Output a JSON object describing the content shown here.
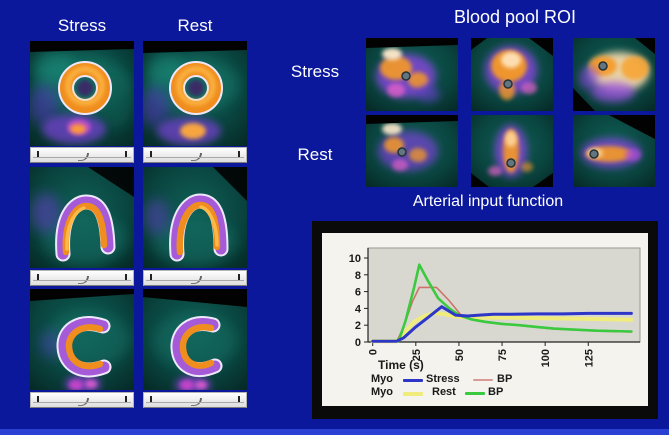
{
  "left_panel": {
    "column_headers": [
      {
        "label": "Stress"
      },
      {
        "label": "Rest"
      }
    ]
  },
  "blood_pool": {
    "title": "Blood pool ROI",
    "row_labels": [
      {
        "label": "Stress"
      },
      {
        "label": "Rest"
      }
    ]
  },
  "aif": {
    "title": "Arterial input function"
  },
  "chart_data": {
    "type": "line",
    "title": "Arterial input function",
    "xlabel": "Time (s)",
    "ylabel": "",
    "xlim": [
      0,
      155
    ],
    "ylim": [
      0,
      10
    ],
    "xticks": [
      0,
      25,
      50,
      75,
      100,
      125
    ],
    "yticks": [
      0,
      2,
      4,
      6,
      8,
      10
    ],
    "x_tick_rotation": -90,
    "grid": false,
    "plot_bg": "#d9d8d0",
    "legend_position": "bottom",
    "series": [
      {
        "name": "Myo Rest",
        "color": "#efec7d",
        "width": 4,
        "points": [
          [
            0,
            0.1
          ],
          [
            14,
            0.1
          ],
          [
            18,
            1.0
          ],
          [
            24,
            2.4
          ],
          [
            30,
            3.1
          ],
          [
            36,
            3.45
          ],
          [
            42,
            3.3
          ],
          [
            48,
            3.05
          ],
          [
            55,
            2.95
          ],
          [
            65,
            2.9
          ],
          [
            80,
            2.9
          ],
          [
            95,
            2.85
          ],
          [
            110,
            2.8
          ],
          [
            125,
            2.75
          ],
          [
            150,
            2.65
          ]
        ]
      },
      {
        "name": "BP Stress",
        "color": "#cd7468",
        "width": 1.6,
        "points": [
          [
            0,
            0.1
          ],
          [
            14,
            0.1
          ],
          [
            18,
            1.8
          ],
          [
            23,
            4.8
          ],
          [
            27,
            6.5
          ],
          [
            37,
            6.5
          ],
          [
            44,
            5.0
          ],
          [
            52,
            3.0
          ],
          [
            58,
            2.7
          ],
          [
            65,
            2.45
          ],
          [
            75,
            2.2
          ],
          [
            85,
            1.95
          ],
          [
            95,
            1.75
          ],
          [
            105,
            1.55
          ],
          [
            115,
            1.45
          ],
          [
            130,
            1.3
          ],
          [
            150,
            1.2
          ]
        ]
      },
      {
        "name": "BP Rest",
        "color": "#3bc93f",
        "width": 2.6,
        "points": [
          [
            0,
            0.1
          ],
          [
            15,
            0.1
          ],
          [
            19,
            2.5
          ],
          [
            24,
            6.5
          ],
          [
            27,
            9.2
          ],
          [
            32,
            7.3
          ],
          [
            38,
            5.2
          ],
          [
            45,
            3.9
          ],
          [
            50,
            3.2
          ],
          [
            57,
            2.7
          ],
          [
            65,
            2.4
          ],
          [
            75,
            2.15
          ],
          [
            85,
            2.0
          ],
          [
            95,
            1.8
          ],
          [
            105,
            1.6
          ],
          [
            115,
            1.5
          ],
          [
            130,
            1.35
          ],
          [
            150,
            1.25
          ]
        ]
      },
      {
        "name": "Myo Stress",
        "color": "#2e36c8",
        "width": 3,
        "points": [
          [
            0,
            0.1
          ],
          [
            14,
            0.1
          ],
          [
            18,
            0.5
          ],
          [
            25,
            1.8
          ],
          [
            32,
            2.9
          ],
          [
            40,
            4.2
          ],
          [
            44,
            3.7
          ],
          [
            48,
            3.2
          ],
          [
            55,
            3.1
          ],
          [
            62,
            3.2
          ],
          [
            70,
            3.3
          ],
          [
            80,
            3.3
          ],
          [
            95,
            3.35
          ],
          [
            110,
            3.35
          ],
          [
            125,
            3.4
          ],
          [
            150,
            3.4
          ]
        ]
      }
    ],
    "legend": {
      "rows": [
        {
          "left_label": "Myo",
          "left_color": "#2e36c8",
          "center_label": "Stress",
          "right_color": "#d89a94",
          "right_label": "BP"
        },
        {
          "left_label": "Myo",
          "left_color": "#efec7d",
          "center_label": "Rest",
          "right_color": "#3bc93f",
          "right_label": "BP"
        }
      ]
    }
  }
}
